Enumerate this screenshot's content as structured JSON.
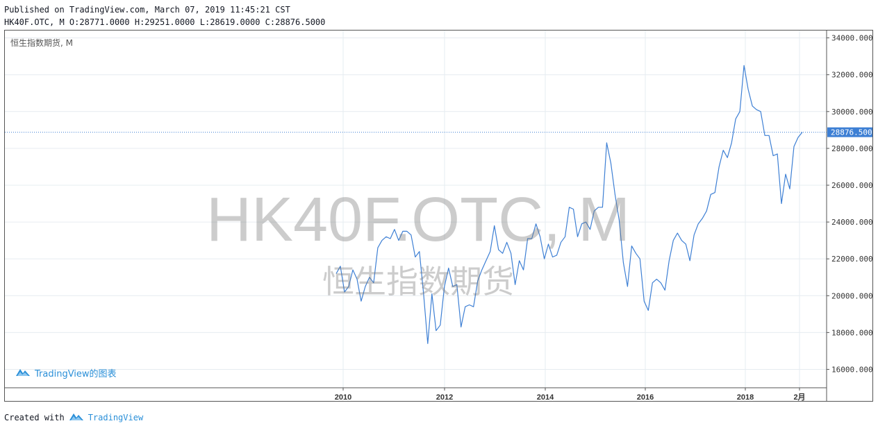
{
  "header": {
    "published": "Published on TradingView.com, March 07, 2019 11:45:21 CST",
    "ohlc": "HK40F.OTC, M O:28771.0000 H:29251.0000 L:28619.0000 C:28876.5000"
  },
  "symbol_label": "恒生指数期货, M",
  "watermark": {
    "ticker": "HK40F.OTC, M",
    "name": "恒生指数期货"
  },
  "tv_link": "TradingView的图表",
  "footer": {
    "prefix": "Created with",
    "brand": "TradingView"
  },
  "colors": {
    "line": "#3d7fd4",
    "price_badge": "#3d7fd4",
    "grid": "#e6ecf0"
  },
  "chart_data": {
    "type": "line",
    "title": "",
    "y_range": [
      15000,
      34400
    ],
    "y_ticks": [
      "16000.0000",
      "18000.0000",
      "20000.0000",
      "22000.0000",
      "24000.0000",
      "26000.0000",
      "28000.0000",
      "30000.0000",
      "32000.0000",
      "34000.0000"
    ],
    "x_ticks": [
      "2010",
      "2012",
      "2014",
      "2016",
      "2018",
      "2月"
    ],
    "last_price": "28876.5000",
    "last_value": 28876.5,
    "series": [
      {
        "values": [
          21200,
          21600,
          20200,
          20500,
          21400,
          20900,
          19700,
          20500,
          21000,
          20700,
          22600,
          23000,
          23200,
          23100,
          23600,
          23000,
          23500,
          23500,
          23300,
          22100,
          22400,
          20100,
          17400,
          20100,
          18100,
          18400,
          20500,
          21500,
          20500,
          20600,
          18300,
          19400,
          19500,
          19400,
          20800,
          21400,
          21900,
          22400,
          23800,
          22500,
          22300,
          22900,
          22300,
          20600,
          21900,
          21400,
          23100,
          23100,
          23900,
          23200,
          22000,
          22800,
          22100,
          22200,
          22900,
          23200,
          24800,
          24700,
          23200,
          23900,
          24000,
          23600,
          24600,
          24800,
          24800,
          28300,
          27200,
          25500,
          24100,
          21800,
          20500,
          22700,
          22300,
          22000,
          19700,
          19200,
          20700,
          20900,
          20700,
          20300,
          21900,
          23000,
          23400,
          23000,
          22800,
          21900,
          23300,
          23900,
          24200,
          24600,
          25500,
          25600,
          27000,
          27900,
          27500,
          28300,
          29600,
          30000,
          32500,
          31200,
          30300,
          30100,
          30000,
          28700,
          28700,
          27600,
          27700,
          25000,
          26600,
          25800,
          28100,
          28600,
          28876.5
        ]
      }
    ]
  }
}
